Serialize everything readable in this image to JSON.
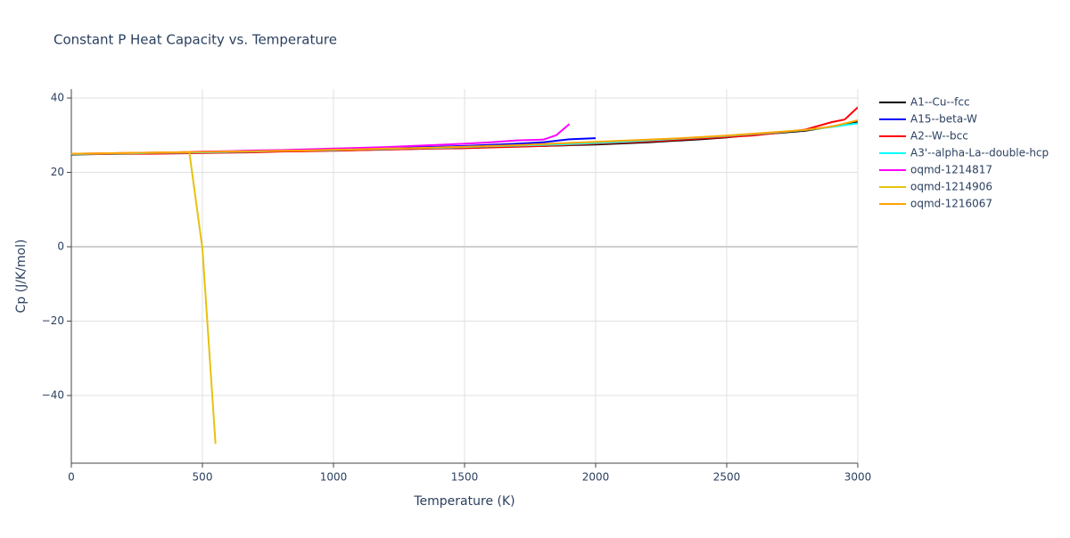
{
  "chart_data": {
    "type": "line",
    "title": "Constant P Heat Capacity vs. Temperature",
    "x_label": "Temperature (K)",
    "y_label": "Cp (J/K/mol)",
    "xlim": [
      0,
      3000
    ],
    "xticks": [
      0,
      500,
      1000,
      1500,
      2000,
      2500,
      3000
    ],
    "ylim": [
      -58.2,
      42.4
    ],
    "yticks": [
      -40,
      -20,
      0,
      20,
      40
    ],
    "grid": true,
    "series": [
      {
        "name": "A1--Cu--fcc",
        "color": "#000000",
        "x": [
          0,
          100,
          200,
          300,
          400,
          500,
          600,
          700,
          800,
          900,
          1000,
          1100,
          1200,
          1300,
          1400,
          1500,
          1600,
          1700,
          1800,
          1900,
          2000,
          2100,
          2200,
          2300,
          2400,
          2500,
          2600,
          2700,
          2800,
          2900,
          3000
        ],
        "values": [
          24.8,
          24.9,
          25.0,
          25.1,
          25.2,
          25.3,
          25.4,
          25.5,
          25.7,
          25.8,
          25.9,
          26.0,
          26.2,
          26.3,
          26.5,
          26.6,
          26.8,
          27.0,
          27.1,
          27.3,
          27.5,
          27.8,
          28.1,
          28.5,
          28.9,
          29.4,
          30.1,
          30.6,
          31.2,
          32.3,
          33.5
        ]
      },
      {
        "name": "A15--beta-W",
        "color": "#0000ff",
        "x": [
          0,
          100,
          200,
          300,
          400,
          500,
          600,
          700,
          800,
          900,
          1000,
          1100,
          1200,
          1300,
          1400,
          1500,
          1600,
          1700,
          1800,
          1900,
          2000
        ],
        "values": [
          24.9,
          25.0,
          25.1,
          25.2,
          25.3,
          25.4,
          25.6,
          25.7,
          25.8,
          26.0,
          26.1,
          26.3,
          26.5,
          26.7,
          26.9,
          27.1,
          27.4,
          27.7,
          28.1,
          28.9,
          29.2
        ]
      },
      {
        "name": "A2--W--bcc",
        "color": "#ff0000",
        "x": [
          0,
          100,
          200,
          300,
          400,
          500,
          600,
          700,
          800,
          900,
          1000,
          1100,
          1200,
          1300,
          1400,
          1500,
          1600,
          1700,
          1800,
          1900,
          2000,
          2100,
          2200,
          2300,
          2400,
          2500,
          2600,
          2700,
          2800,
          2900,
          2950,
          3000
        ],
        "values": [
          24.9,
          24.9,
          25.0,
          25.0,
          25.1,
          25.2,
          25.3,
          25.4,
          25.6,
          25.7,
          25.8,
          26.0,
          26.1,
          26.3,
          26.4,
          26.5,
          26.7,
          26.9,
          27.1,
          27.4,
          27.7,
          28.0,
          28.3,
          28.7,
          29.1,
          29.5,
          29.9,
          30.7,
          31.5,
          33.5,
          34.2,
          37.5
        ]
      },
      {
        "name": "A3'--alpha-La--double-hcp",
        "color": "#00ffff",
        "x": [
          0,
          100,
          200,
          300,
          400,
          500,
          600,
          700,
          800,
          900,
          1000,
          1100,
          1200,
          1300,
          1400,
          1500,
          1600,
          1700,
          1800,
          1900,
          2000,
          2100,
          2200,
          2300,
          2400,
          2500,
          2600,
          2700,
          2800,
          2900,
          3000
        ],
        "values": [
          24.9,
          25.0,
          25.1,
          25.2,
          25.3,
          25.4,
          25.5,
          25.6,
          25.8,
          25.9,
          26.0,
          26.2,
          26.3,
          26.5,
          26.6,
          26.8,
          27.0,
          27.2,
          27.4,
          27.6,
          27.9,
          28.2,
          28.6,
          29.0,
          29.4,
          29.8,
          30.3,
          30.8,
          31.4,
          32.2,
          33.2
        ]
      },
      {
        "name": "oqmd-1214817",
        "color": "#ff00ff",
        "x": [
          0,
          100,
          200,
          300,
          400,
          500,
          600,
          700,
          800,
          900,
          1000,
          1100,
          1200,
          1300,
          1400,
          1500,
          1600,
          1700,
          1800,
          1850,
          1900
        ],
        "values": [
          25.0,
          25.1,
          25.2,
          25.3,
          25.4,
          25.6,
          25.7,
          25.9,
          26.0,
          26.2,
          26.4,
          26.6,
          26.8,
          27.1,
          27.4,
          27.7,
          28.1,
          28.6,
          28.8,
          30.0,
          33.0
        ]
      },
      {
        "name": "oqmd-1214906",
        "color": "#e6c20f",
        "x": [
          0,
          100,
          200,
          300,
          400,
          450,
          500,
          550
        ],
        "values": [
          25.0,
          25.1,
          25.2,
          25.3,
          25.4,
          25.5,
          -0.5,
          -53.0
        ]
      },
      {
        "name": "oqmd-1216067",
        "color": "#ffa500",
        "x": [
          0,
          100,
          200,
          300,
          400,
          500,
          600,
          700,
          800,
          900,
          1000,
          1100,
          1200,
          1300,
          1400,
          1500,
          1600,
          1700,
          1800,
          1900,
          2000,
          2100,
          2200,
          2300,
          2400,
          2500,
          2600,
          2700,
          2800,
          2900,
          3000
        ],
        "values": [
          25.0,
          25.1,
          25.2,
          25.3,
          25.4,
          25.5,
          25.6,
          25.7,
          25.8,
          25.9,
          26.1,
          26.2,
          26.4,
          26.5,
          26.7,
          26.9,
          27.1,
          27.3,
          27.6,
          27.9,
          28.2,
          28.5,
          28.8,
          29.1,
          29.5,
          29.9,
          30.4,
          30.9,
          31.4,
          32.3,
          34.0
        ]
      }
    ]
  }
}
